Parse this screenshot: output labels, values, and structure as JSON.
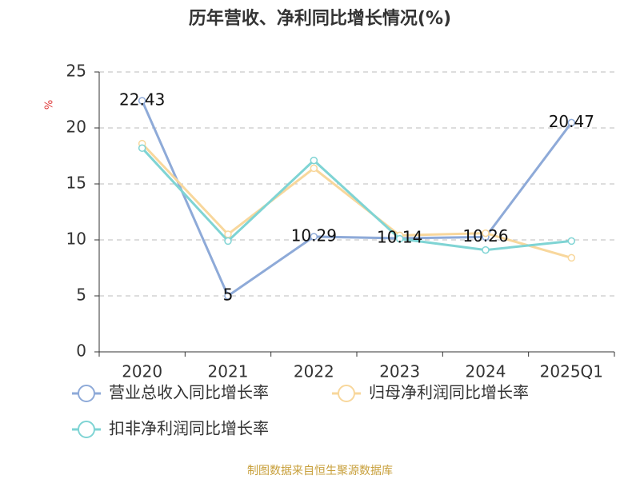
{
  "chart_data": {
    "type": "line",
    "title": "历年营收、净利同比增长情况(%)",
    "y_label": "%",
    "source": "制图数据来自恒生聚源数据库",
    "categories": [
      "2020",
      "2021",
      "2022",
      "2023",
      "2024",
      "2025Q1"
    ],
    "series": [
      {
        "name": "营业总收入同比增长率",
        "color": "#8eaad8",
        "values": [
          22.43,
          5,
          10.29,
          10.14,
          10.26,
          20.47
        ],
        "show_labels": true
      },
      {
        "name": "归母净利润同比增长率",
        "color": "#f8d79c",
        "values": [
          18.6,
          10.5,
          16.4,
          10.4,
          10.6,
          8.4
        ],
        "show_labels": false
      },
      {
        "name": "扣非净利润同比增长率",
        "color": "#7fd4d4",
        "values": [
          18.2,
          9.9,
          17.1,
          10.1,
          9.1,
          9.9
        ],
        "show_labels": false
      }
    ],
    "ylim": [
      0,
      25
    ],
    "yticks": [
      0,
      5,
      10,
      15,
      20,
      25
    ],
    "grid": true
  }
}
